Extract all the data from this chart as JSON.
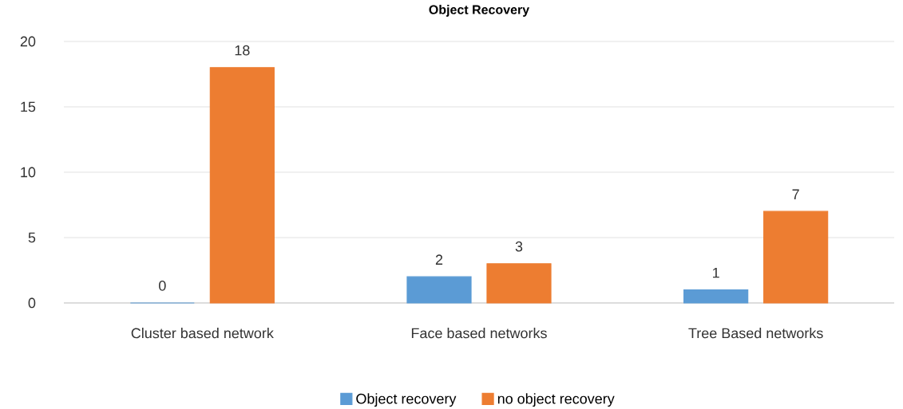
{
  "chart_data": {
    "type": "bar",
    "title": "Object Recovery",
    "categories": [
      "Cluster based network",
      "Face based networks",
      "Tree Based networks"
    ],
    "series": [
      {
        "name": "Object recovery",
        "color": "#5b9bd5",
        "values": [
          0,
          2,
          1
        ]
      },
      {
        "name": "no object recovery",
        "color": "#ed7d31",
        "values": [
          18,
          3,
          7
        ]
      }
    ],
    "ylim": [
      0,
      20
    ],
    "yticks": [
      0,
      5,
      10,
      15,
      20
    ],
    "grid": "y",
    "legend": "bottom",
    "data_labels": true
  }
}
